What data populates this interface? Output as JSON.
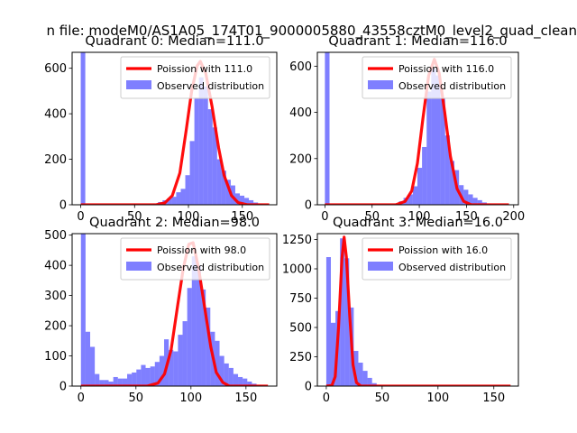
{
  "figure": {
    "suptitle": "n file: modeM0/AS1A05_174T01_9000005880_43558cztM0_level2_quad_clean"
  },
  "colors": {
    "observed": "#0000ff",
    "poisson": "#ff0000",
    "background": "#ffffff"
  },
  "chart_data": [
    {
      "type": "bar",
      "title": "Quadrant 0: Median=111.0",
      "xlim": [
        -8,
        182
      ],
      "ylim": [
        0,
        670
      ],
      "xticks": [
        0,
        50,
        100,
        150
      ],
      "yticks": [
        0,
        200,
        400,
        600
      ],
      "legend": [
        "Poission with 111.0",
        "Observed distribution"
      ],
      "legend_position": "top-right",
      "observed": {
        "bin_width": 4.22,
        "bins": [
          [
            0,
            670
          ],
          [
            4.22,
            0
          ],
          [
            8.44,
            0
          ],
          [
            12.66,
            0
          ],
          [
            16.88,
            0
          ],
          [
            21.1,
            0
          ],
          [
            25.32,
            0
          ],
          [
            29.54,
            0
          ],
          [
            33.76,
            0
          ],
          [
            37.98,
            0
          ],
          [
            42.2,
            0
          ],
          [
            46.42,
            0
          ],
          [
            50.64,
            0
          ],
          [
            54.86,
            0
          ],
          [
            59.08,
            0
          ],
          [
            63.3,
            3
          ],
          [
            67.52,
            5
          ],
          [
            71.74,
            12
          ],
          [
            75.96,
            20
          ],
          [
            80.18,
            28
          ],
          [
            84.4,
            35
          ],
          [
            88.62,
            55
          ],
          [
            92.84,
            70
          ],
          [
            97.06,
            130
          ],
          [
            101.28,
            280
          ],
          [
            105.5,
            470
          ],
          [
            109.72,
            560
          ],
          [
            113.94,
            520
          ],
          [
            118.16,
            420
          ],
          [
            122.38,
            340
          ],
          [
            126.6,
            200
          ],
          [
            130.82,
            150
          ],
          [
            135.04,
            110
          ],
          [
            139.26,
            85
          ],
          [
            143.48,
            50
          ],
          [
            147.7,
            40
          ],
          [
            151.92,
            30
          ],
          [
            156.14,
            20
          ],
          [
            160.36,
            10
          ],
          [
            164.58,
            5
          ],
          [
            168.8,
            2
          ],
          [
            173.02,
            1
          ]
        ]
      },
      "poisson": {
        "label": "Poission with 111.0",
        "points": [
          [
            0,
            0
          ],
          [
            70,
            0
          ],
          [
            78,
            8
          ],
          [
            85,
            40
          ],
          [
            92,
            140
          ],
          [
            98,
            330
          ],
          [
            103,
            500
          ],
          [
            108,
            610
          ],
          [
            111,
            630
          ],
          [
            116,
            580
          ],
          [
            122,
            430
          ],
          [
            128,
            250
          ],
          [
            133,
            130
          ],
          [
            140,
            40
          ],
          [
            146,
            10
          ],
          [
            155,
            0
          ],
          [
            175,
            0
          ]
        ]
      }
    },
    {
      "type": "bar",
      "title": "Quadrant 1: Median=116.0",
      "xlim": [
        -8,
        205
      ],
      "ylim": [
        0,
        660
      ],
      "xticks": [
        0,
        50,
        100,
        150,
        200
      ],
      "yticks": [
        0,
        200,
        400,
        600
      ],
      "legend": [
        "Poission with 116.0",
        "Observed distribution"
      ],
      "legend_position": "top-right",
      "observed": {
        "bin_width": 4.9,
        "bins": [
          [
            0,
            660
          ],
          [
            4.9,
            0
          ],
          [
            9.8,
            0
          ],
          [
            14.7,
            0
          ],
          [
            19.6,
            0
          ],
          [
            24.5,
            0
          ],
          [
            29.4,
            0
          ],
          [
            34.3,
            0
          ],
          [
            39.2,
            0
          ],
          [
            44.1,
            0
          ],
          [
            49,
            0
          ],
          [
            53.9,
            0
          ],
          [
            58.8,
            0
          ],
          [
            63.7,
            0
          ],
          [
            68.6,
            0
          ],
          [
            73.5,
            5
          ],
          [
            78.4,
            15
          ],
          [
            83.3,
            30
          ],
          [
            88.2,
            45
          ],
          [
            93.1,
            80
          ],
          [
            98,
            160
          ],
          [
            102.9,
            250
          ],
          [
            107.8,
            490
          ],
          [
            112.7,
            590
          ],
          [
            117.6,
            560
          ],
          [
            122.5,
            460
          ],
          [
            127.4,
            300
          ],
          [
            132.3,
            190
          ],
          [
            137.2,
            150
          ],
          [
            142.1,
            85
          ],
          [
            147,
            65
          ],
          [
            151.9,
            45
          ],
          [
            156.8,
            30
          ],
          [
            161.7,
            20
          ],
          [
            166.6,
            10
          ],
          [
            171.5,
            5
          ],
          [
            176.4,
            3
          ],
          [
            181.3,
            2
          ],
          [
            186.2,
            1
          ]
        ]
      },
      "poisson": {
        "label": "Poission with 116.0",
        "points": [
          [
            0,
            0
          ],
          [
            75,
            0
          ],
          [
            85,
            15
          ],
          [
            92,
            60
          ],
          [
            98,
            180
          ],
          [
            104,
            380
          ],
          [
            110,
            560
          ],
          [
            116,
            630
          ],
          [
            121,
            570
          ],
          [
            127,
            400
          ],
          [
            133,
            210
          ],
          [
            140,
            70
          ],
          [
            147,
            15
          ],
          [
            155,
            0
          ],
          [
            195,
            0
          ]
        ]
      }
    },
    {
      "type": "bar",
      "title": "Quadrant 2: Median=98.0",
      "xlim": [
        -8,
        178
      ],
      "ylim": [
        0,
        505
      ],
      "xticks": [
        0,
        50,
        100,
        150
      ],
      "yticks": [
        0,
        100,
        200,
        300,
        400,
        500
      ],
      "legend": [
        "Poission with 98.0",
        "Observed distribution"
      ],
      "legend_position": "top-right",
      "observed": {
        "bin_width": 4.2,
        "bins": [
          [
            0,
            505
          ],
          [
            4.2,
            180
          ],
          [
            8.4,
            130
          ],
          [
            12.6,
            40
          ],
          [
            16.8,
            20
          ],
          [
            21,
            20
          ],
          [
            25.2,
            15
          ],
          [
            29.4,
            30
          ],
          [
            33.6,
            25
          ],
          [
            37.8,
            25
          ],
          [
            42,
            40
          ],
          [
            46.2,
            45
          ],
          [
            50.4,
            55
          ],
          [
            54.6,
            70
          ],
          [
            58.8,
            60
          ],
          [
            63,
            65
          ],
          [
            67.2,
            80
          ],
          [
            71.4,
            100
          ],
          [
            75.6,
            155
          ],
          [
            79.8,
            120
          ],
          [
            84,
            115
          ],
          [
            88.2,
            170
          ],
          [
            92.4,
            215
          ],
          [
            96.6,
            325
          ],
          [
            100.8,
            430
          ],
          [
            105,
            400
          ],
          [
            109.2,
            320
          ],
          [
            113.4,
            260
          ],
          [
            117.6,
            180
          ],
          [
            121.8,
            150
          ],
          [
            126,
            100
          ],
          [
            130.2,
            75
          ],
          [
            134.4,
            60
          ],
          [
            138.6,
            40
          ],
          [
            142.8,
            30
          ],
          [
            147,
            25
          ],
          [
            151.2,
            15
          ],
          [
            155.4,
            8
          ],
          [
            159.6,
            4
          ],
          [
            163.8,
            2
          ]
        ]
      },
      "poisson": {
        "label": "Poission with 98.0",
        "points": [
          [
            0,
            0
          ],
          [
            60,
            0
          ],
          [
            70,
            10
          ],
          [
            76,
            40
          ],
          [
            82,
            120
          ],
          [
            88,
            270
          ],
          [
            93,
            390
          ],
          [
            98,
            470
          ],
          [
            102,
            475
          ],
          [
            107,
            390
          ],
          [
            112,
            270
          ],
          [
            118,
            130
          ],
          [
            123,
            45
          ],
          [
            129,
            12
          ],
          [
            135,
            0
          ],
          [
            170,
            0
          ]
        ]
      }
    },
    {
      "type": "bar",
      "title": "Quadrant 3: Median=16.0",
      "xlim": [
        -8,
        172
      ],
      "ylim": [
        0,
        1300
      ],
      "xticks": [
        0,
        50,
        100,
        150
      ],
      "yticks": [
        0,
        250,
        500,
        750,
        1000,
        1250
      ],
      "legend": [
        "Poission with 16.0",
        "Observed distribution"
      ],
      "legend_position": "top-right",
      "observed": {
        "bin_width": 4.1,
        "bins": [
          [
            0,
            1100
          ],
          [
            4.1,
            540
          ],
          [
            8.2,
            640
          ],
          [
            12.3,
            1260
          ],
          [
            16.4,
            1090
          ],
          [
            20.5,
            670
          ],
          [
            24.6,
            300
          ],
          [
            28.7,
            200
          ],
          [
            32.8,
            130
          ],
          [
            36.9,
            70
          ],
          [
            41,
            25
          ],
          [
            45.1,
            10
          ],
          [
            49.2,
            5
          ],
          [
            53.3,
            2
          ],
          [
            57.4,
            1
          ]
        ]
      },
      "poisson": {
        "label": "Poission with 16.0",
        "points": [
          [
            0,
            0
          ],
          [
            5,
            5
          ],
          [
            8,
            80
          ],
          [
            11,
            500
          ],
          [
            14,
            1090
          ],
          [
            16,
            1270
          ],
          [
            18,
            1100
          ],
          [
            21,
            600
          ],
          [
            24,
            180
          ],
          [
            27,
            30
          ],
          [
            31,
            0
          ],
          [
            165,
            0
          ]
        ]
      }
    }
  ]
}
